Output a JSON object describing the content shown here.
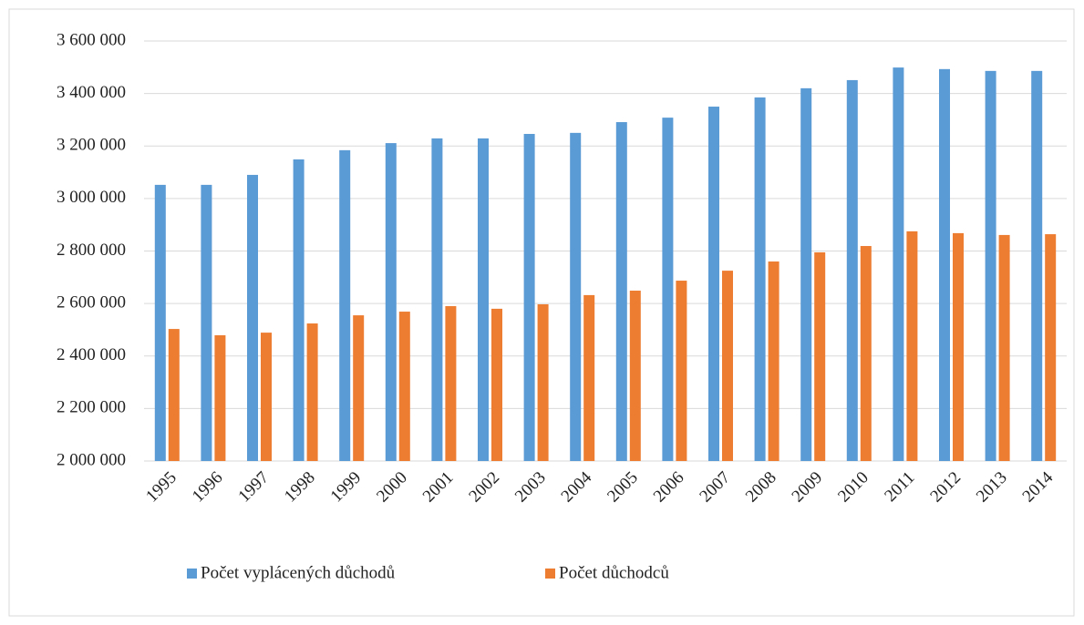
{
  "chart_data": {
    "type": "bar",
    "categories": [
      "1995",
      "1996",
      "1997",
      "1998",
      "1999",
      "2000",
      "2001",
      "2002",
      "2003",
      "2004",
      "2005",
      "2006",
      "2007",
      "2008",
      "2009",
      "2010",
      "2011",
      "2012",
      "2013",
      "2014"
    ],
    "series": [
      {
        "name": "Počet vyplácených důchodů",
        "color": "#5b9bd5",
        "values": [
          3052000,
          3052000,
          3090000,
          3149000,
          3184000,
          3211000,
          3229000,
          3229000,
          3246000,
          3250000,
          3291000,
          3308000,
          3350000,
          3385000,
          3420000,
          3451000,
          3499000,
          3493000,
          3486000,
          3486000
        ]
      },
      {
        "name": "Počet důchodců",
        "color": "#ed7d31",
        "values": [
          2503000,
          2479000,
          2489000,
          2524000,
          2555000,
          2569000,
          2590000,
          2580000,
          2597000,
          2632000,
          2649000,
          2687000,
          2725000,
          2760000,
          2795000,
          2819000,
          2875000,
          2868000,
          2861000,
          2864000
        ]
      }
    ],
    "ylim": [
      2000000,
      3600000
    ],
    "yticks": [
      {
        "value": 2000000,
        "label": "2 000 000"
      },
      {
        "value": 2200000,
        "label": "2 200 000"
      },
      {
        "value": 2400000,
        "label": "2 400 000"
      },
      {
        "value": 2600000,
        "label": "2 600 000"
      },
      {
        "value": 2800000,
        "label": "2 800 000"
      },
      {
        "value": 3000000,
        "label": "3 000 000"
      },
      {
        "value": 3200000,
        "label": "3 200 000"
      },
      {
        "value": 3400000,
        "label": "3 400 000"
      },
      {
        "value": 3600000,
        "label": "3 600 000"
      }
    ],
    "grid": true,
    "legend": "bottom"
  }
}
